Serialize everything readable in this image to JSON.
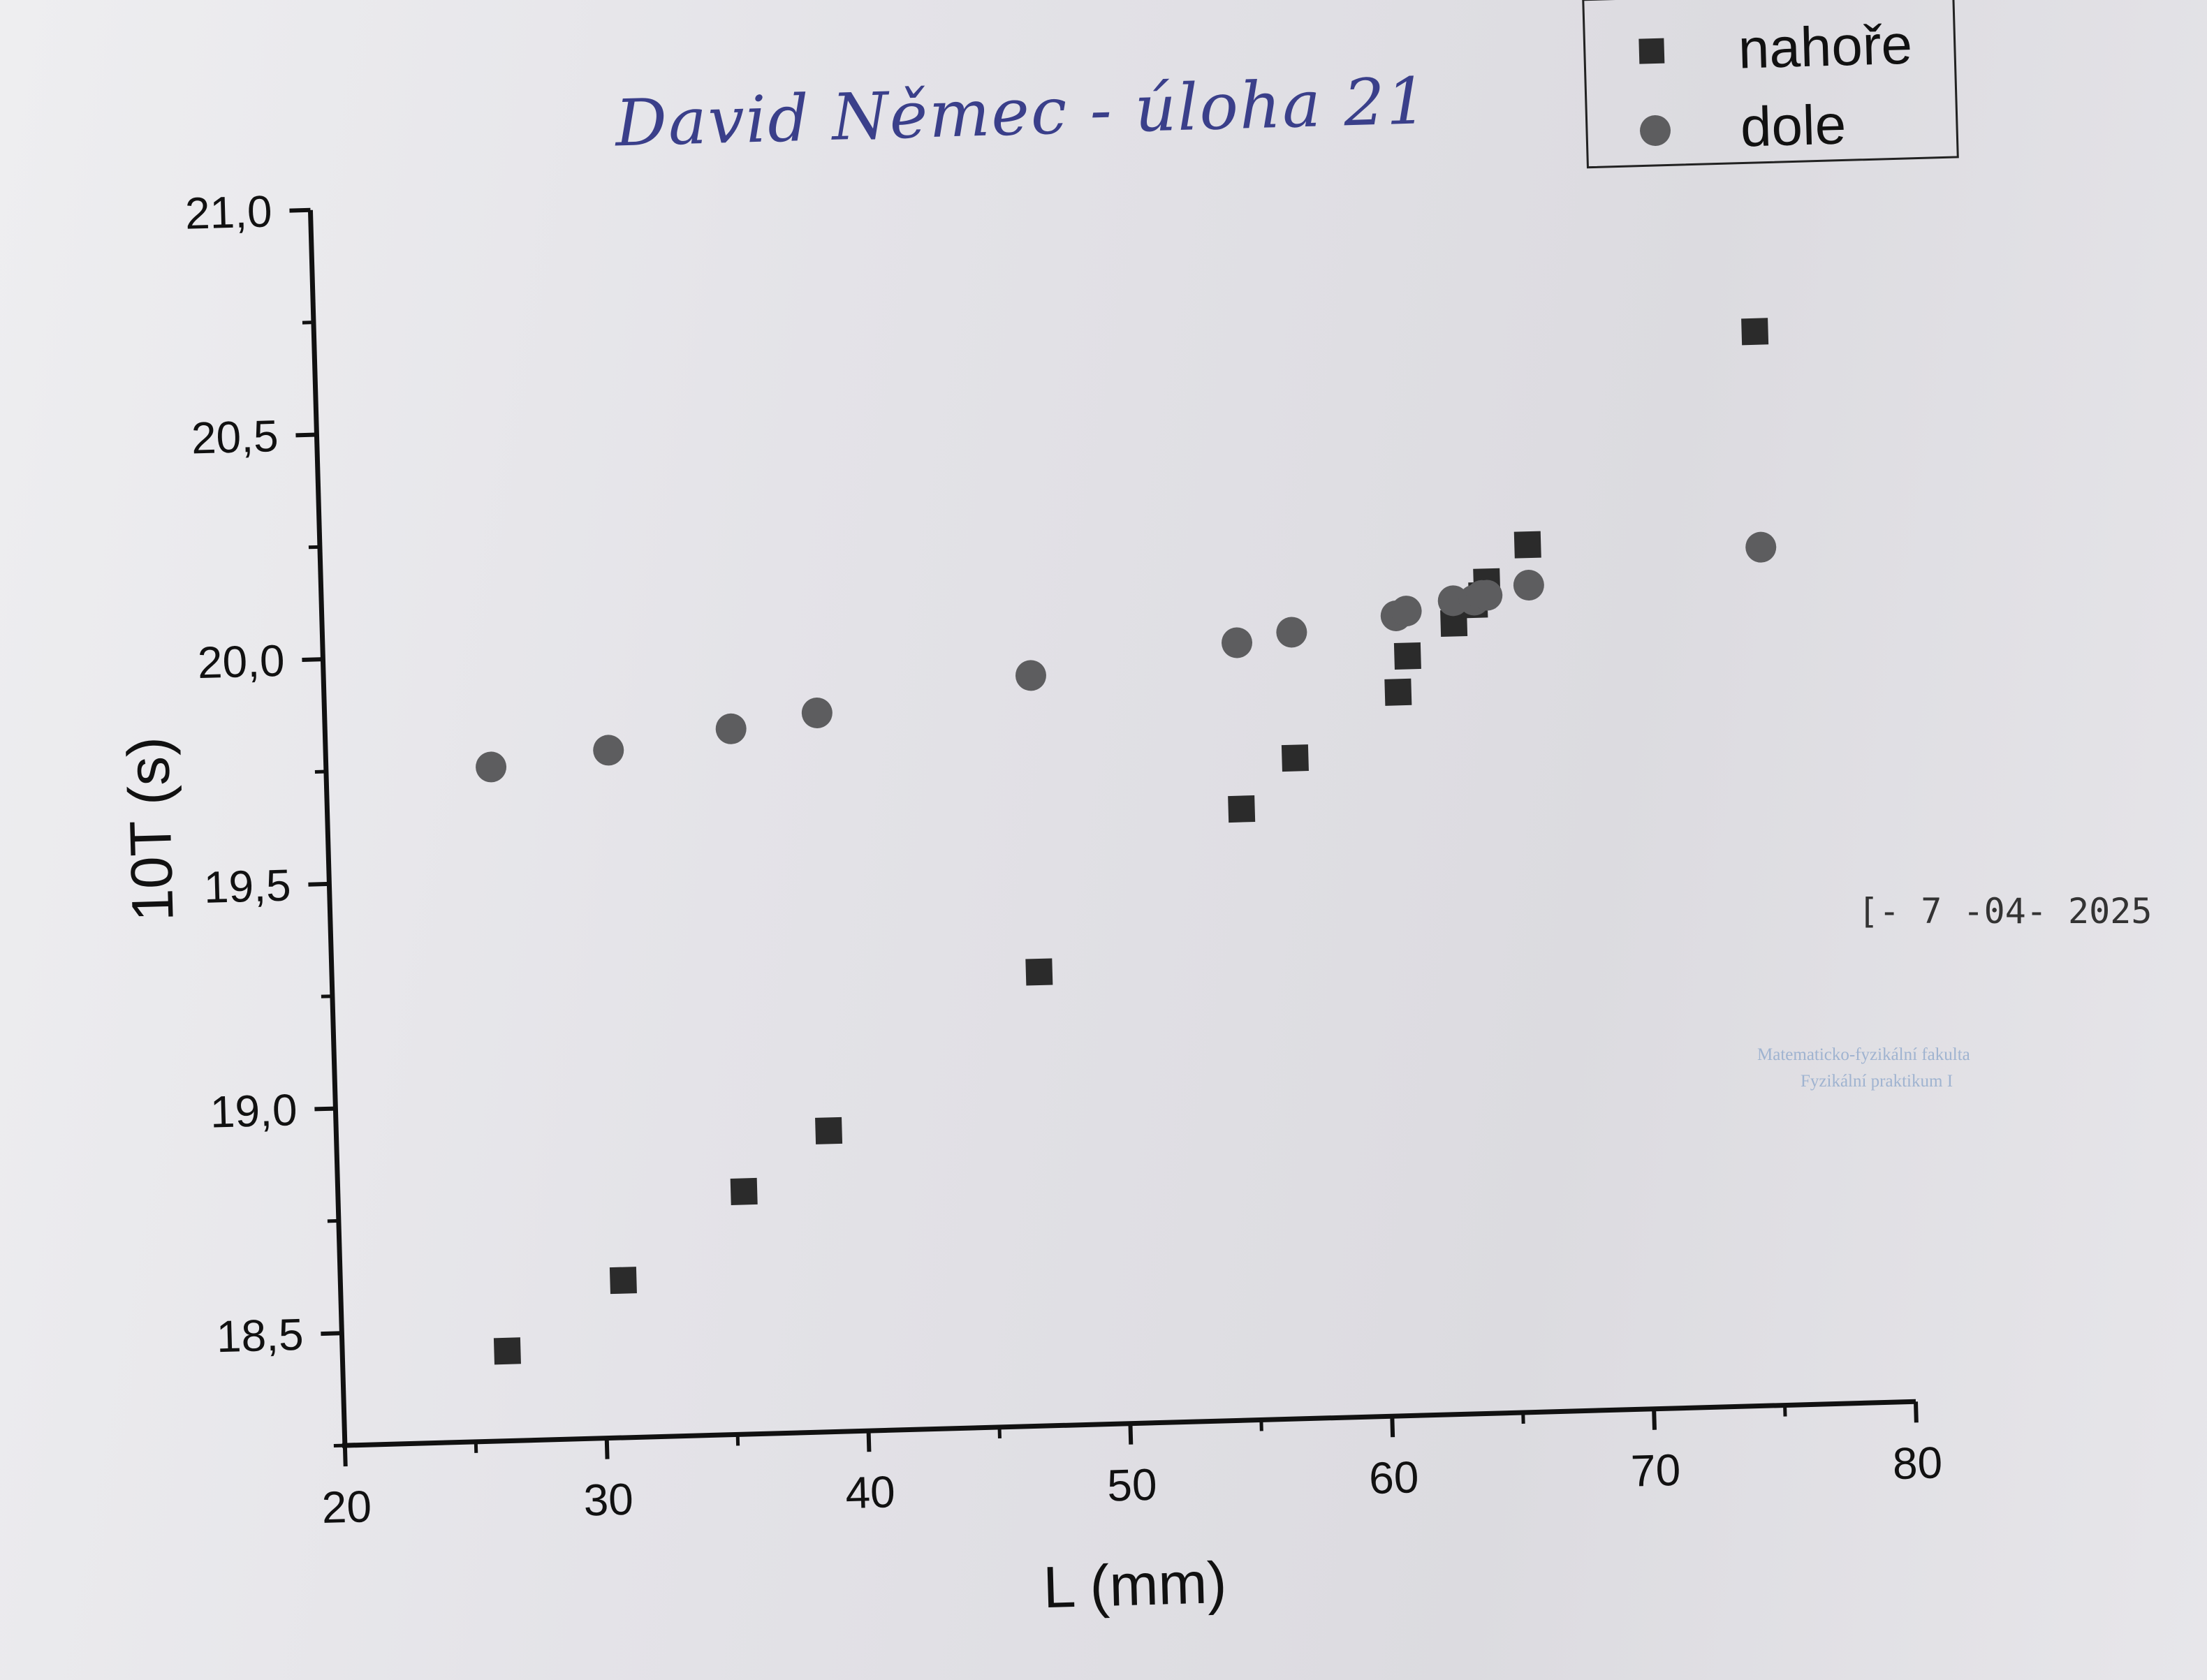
{
  "annotation": {
    "handwritten": "David Němec - úloha 21"
  },
  "stamps": {
    "date": "[- 7 -04- 2025",
    "institution_line1": "Matematicko-fyzikální fakulta",
    "institution_line2": "Fyzikální praktikum I"
  },
  "colors": {
    "marker": "#2b2b2b",
    "marker_circle": "#5d5d5f",
    "axis": "#111111"
  },
  "chart_data": {
    "type": "scatter",
    "title": "",
    "xlabel": "L (mm)",
    "ylabel": "10T (s)",
    "xlim": [
      20,
      80
    ],
    "ylim": [
      18.25,
      21.0
    ],
    "xticks": [
      20,
      30,
      40,
      50,
      60,
      70,
      80
    ],
    "xtick_labels": [
      "20",
      "30",
      "40",
      "50",
      "60",
      "70",
      "80"
    ],
    "yticks": [
      18.5,
      19.0,
      19.5,
      20.0,
      20.5,
      21.0
    ],
    "ytick_labels": [
      "18,5",
      "19,0",
      "19,5",
      "20,0",
      "20,5",
      "21,0"
    ],
    "grid": false,
    "legend_position": "top-right",
    "series": [
      {
        "name": "nahoře",
        "marker": "square",
        "x": [
          26.3,
          30.8,
          35.5,
          38.8,
          47.0,
          54.9,
          57.0,
          61.0,
          61.4,
          63.2,
          64.0,
          64.3,
          64.5,
          66.1,
          75.0
        ],
        "y": [
          18.45,
          18.6,
          18.79,
          18.92,
          19.26,
          19.61,
          19.72,
          19.86,
          19.94,
          20.01,
          20.05,
          20.07,
          20.1,
          20.18,
          20.64
        ]
      },
      {
        "name": "dole",
        "marker": "circle",
        "x": [
          26.3,
          30.8,
          35.5,
          38.8,
          47.0,
          54.9,
          57.0,
          61.0,
          61.4,
          63.2,
          64.0,
          64.3,
          64.5,
          66.1,
          75.0
        ],
        "y": [
          19.75,
          19.78,
          19.82,
          19.85,
          19.92,
          19.98,
          20.0,
          20.03,
          20.04,
          20.06,
          20.06,
          20.07,
          20.07,
          20.09,
          20.16
        ]
      }
    ]
  }
}
